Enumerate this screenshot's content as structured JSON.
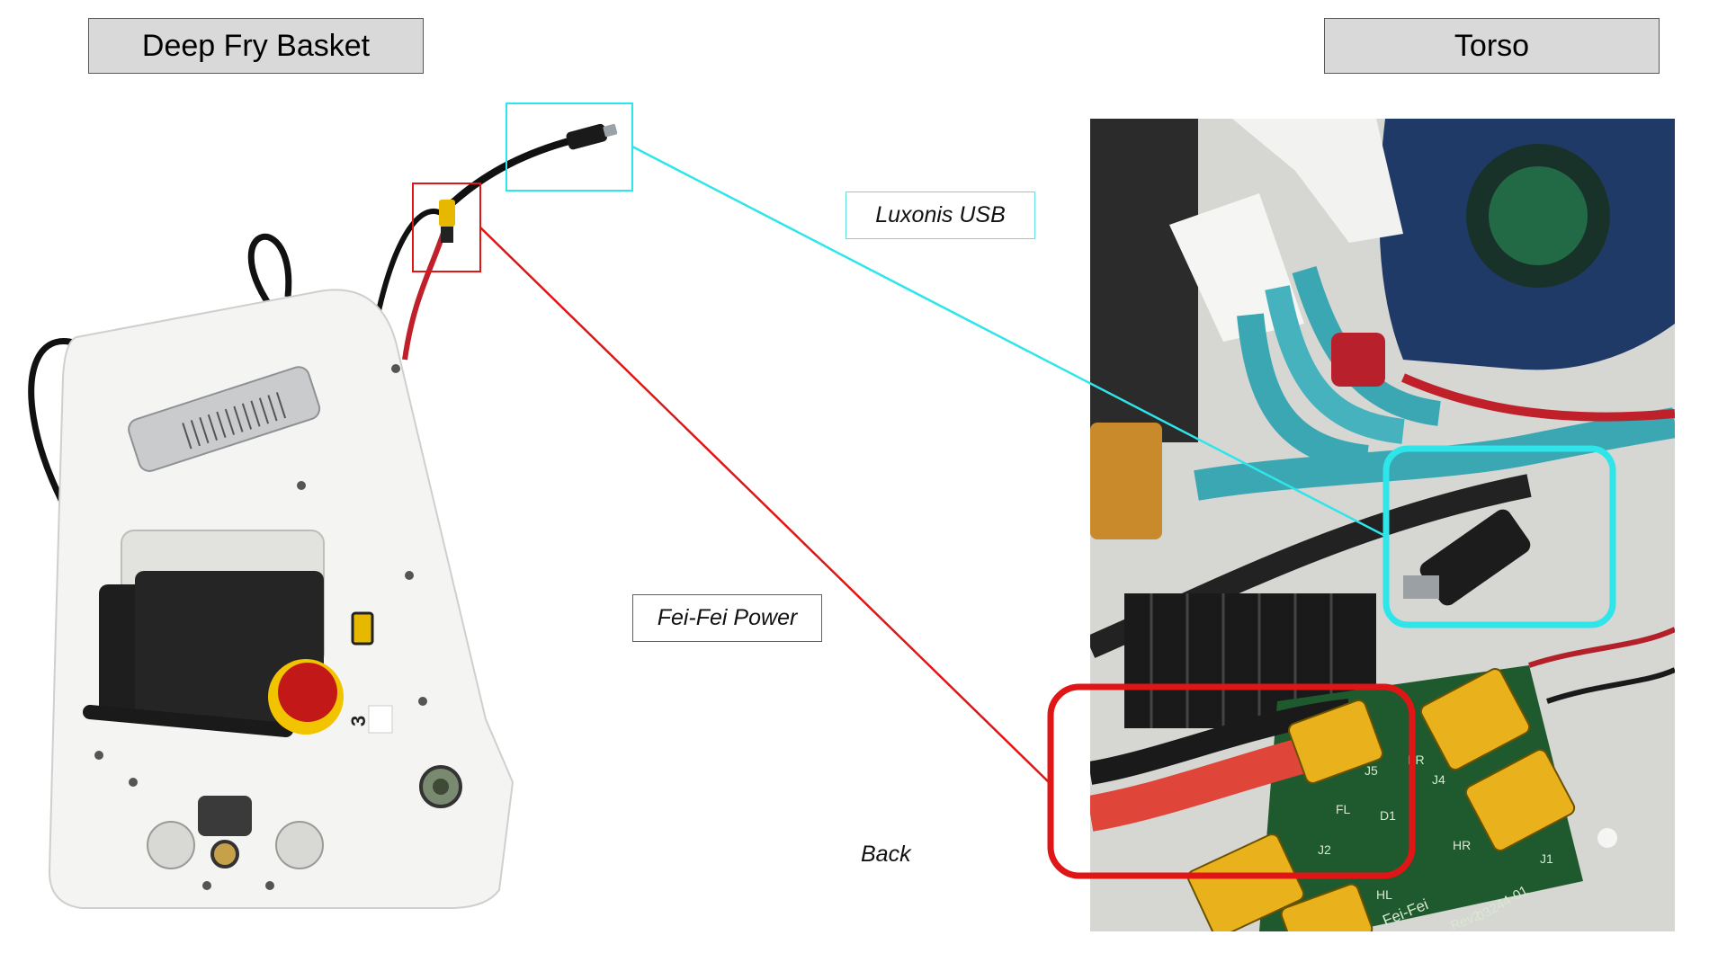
{
  "titles": {
    "left": "Deep Fry Basket",
    "right": "Torso"
  },
  "callouts": {
    "usb": "Luxonis USB",
    "power": "Fei-Fei Power"
  },
  "view_label": "Back",
  "pcb_silkscreen": {
    "board_name": "Fei-Fei",
    "revision": "Rev2",
    "part_number": "03244-01",
    "connectors": [
      "J1",
      "J2",
      "J4",
      "J5",
      "D1",
      "FR",
      "FL",
      "HR",
      "HL"
    ]
  },
  "estop_number": "3",
  "colors": {
    "usb_highlight": "#2ee6ea",
    "power_highlight": "#e01515",
    "title_box_bg": "#d9d9d9"
  }
}
